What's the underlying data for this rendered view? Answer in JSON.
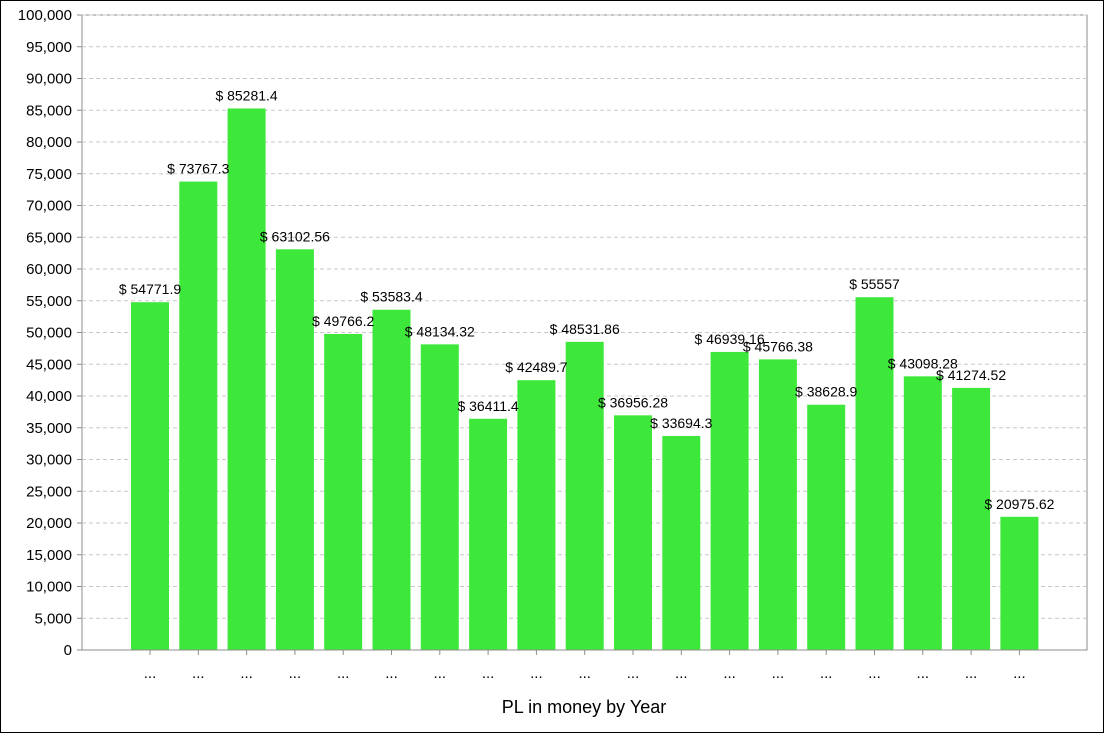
{
  "chart_data": {
    "type": "bar",
    "title": "",
    "xlabel": "PL in money by Year",
    "ylabel": "",
    "ylim": [
      0,
      100000
    ],
    "y_tick_step": 5000,
    "y_tick_labels": [
      "0",
      "5,000",
      "10,000",
      "15,000",
      "20,000",
      "25,000",
      "30,000",
      "35,000",
      "40,000",
      "45,000",
      "50,000",
      "55,000",
      "60,000",
      "65,000",
      "70,000",
      "75,000",
      "80,000",
      "85,000",
      "90,000",
      "95,000",
      "100,000"
    ],
    "grid": true,
    "legend": "none",
    "bar_color": "#3de83a",
    "categories": [
      "...",
      "...",
      "...",
      "...",
      "...",
      "...",
      "...",
      "...",
      "...",
      "...",
      "...",
      "...",
      "...",
      "...",
      "...",
      "...",
      "...",
      "...",
      "..."
    ],
    "values": [
      54771.9,
      73767.3,
      85281.4,
      63102.56,
      49766.2,
      53583.4,
      48134.32,
      36411.4,
      42489.7,
      48531.86,
      36956.28,
      33694.3,
      46939.16,
      45766.38,
      38628.9,
      55557,
      43098.28,
      41274.52,
      20975.62
    ],
    "data_labels": [
      "$ 54771.9",
      "$ 73767.3",
      "$ 85281.4",
      "$ 63102.56",
      "$ 49766.2",
      "$ 53583.4",
      "$ 48134.32",
      "$ 36411.4",
      "$ 42489.7",
      "$ 48531.86",
      "$ 36956.28",
      "$ 33694.3",
      "$ 46939.16",
      "$ 45766.38",
      "$ 38628.9",
      "$ 55557",
      "$ 43098.28",
      "$ 41274.52",
      "$ 20975.62"
    ]
  }
}
